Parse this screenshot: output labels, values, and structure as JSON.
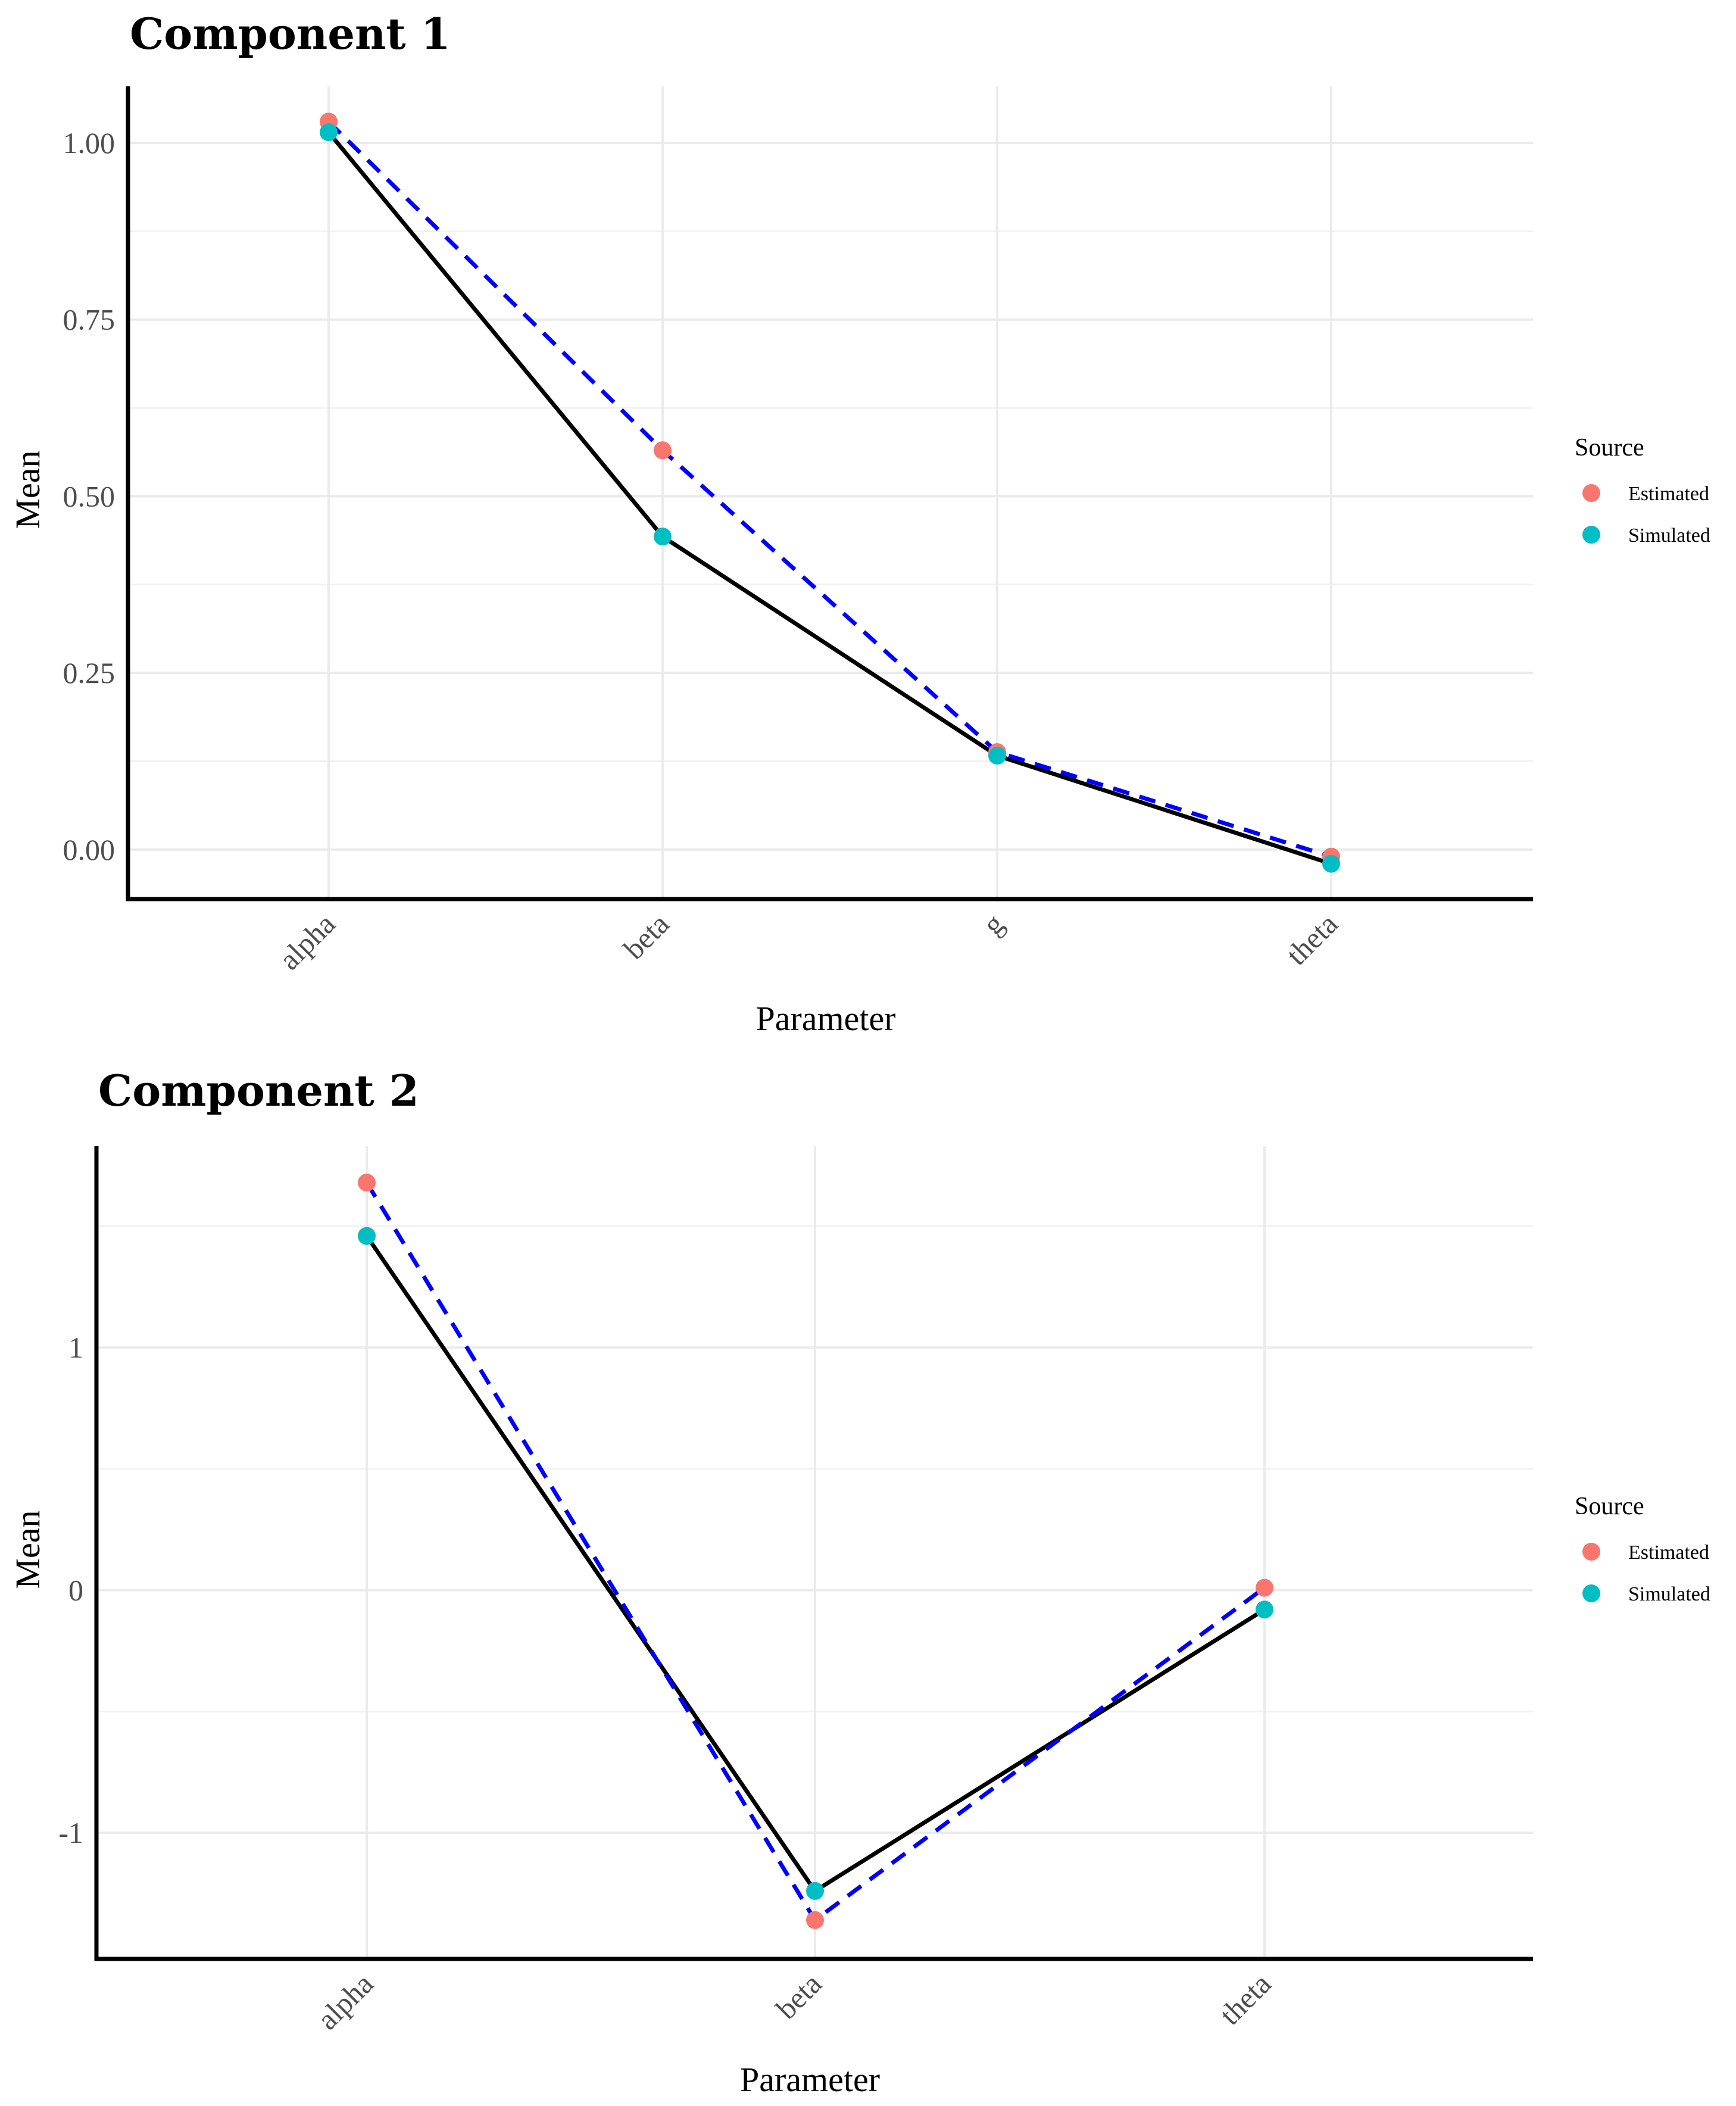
{
  "colors": {
    "estimated": "#F8766D",
    "simulated": "#00BFC4",
    "estimated_line": "#0000FF",
    "simulated_line": "#000000"
  },
  "chart_data": [
    {
      "type": "line",
      "title": "Component 1",
      "xlabel": "Parameter",
      "ylabel": "Mean",
      "categories": [
        "alpha",
        "beta",
        "g",
        "theta"
      ],
      "ylim": [
        -0.07,
        1.08
      ],
      "yticks": [
        0,
        0.25,
        0.5,
        0.75,
        1
      ],
      "ytick_labels": [
        "0.00",
        "0.25",
        "0.50",
        "0.75",
        "1.00"
      ],
      "yminor": [
        0.125,
        0.375,
        0.625,
        0.875
      ],
      "series": [
        {
          "name": "Estimated",
          "values": [
            1.03,
            0.565,
            0.138,
            -0.01
          ],
          "line_style": "dashed"
        },
        {
          "name": "Simulated",
          "values": [
            1.015,
            0.443,
            0.133,
            -0.02
          ],
          "line_style": "solid"
        }
      ],
      "legend": {
        "title": "Source",
        "entries": [
          "Estimated",
          "Simulated"
        ],
        "position": "right"
      }
    },
    {
      "type": "line",
      "title": "Component 2",
      "xlabel": "Parameter",
      "ylabel": "Mean",
      "categories": [
        "alpha",
        "beta",
        "theta"
      ],
      "ylim": [
        -1.52,
        1.83
      ],
      "yticks": [
        -1,
        0,
        1
      ],
      "ytick_labels": [
        "-1",
        "0",
        "1"
      ],
      "yminor": [
        -0.5,
        0.5,
        1.5
      ],
      "series": [
        {
          "name": "Estimated",
          "values": [
            1.68,
            -1.36,
            0.01
          ],
          "line_style": "dashed"
        },
        {
          "name": "Simulated",
          "values": [
            1.46,
            -1.24,
            -0.08
          ],
          "line_style": "solid"
        }
      ],
      "legend": {
        "title": "Source",
        "entries": [
          "Estimated",
          "Simulated"
        ],
        "position": "right"
      }
    }
  ]
}
